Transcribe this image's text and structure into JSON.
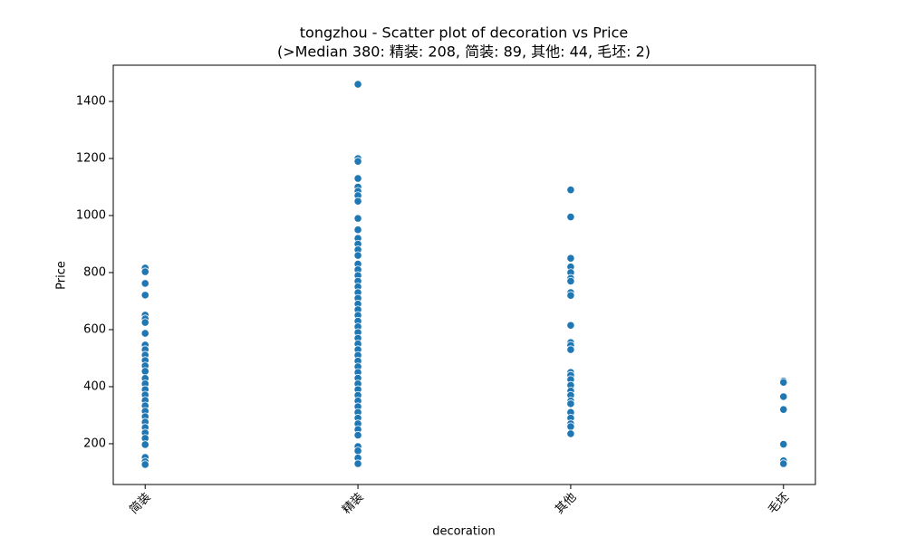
{
  "chart_data": {
    "type": "scatter",
    "title": "tongzhou - Scatter plot of decoration vs Price",
    "subtitle": "(>Median 380: 精装: 208, 简装: 89, 其他: 44, 毛坯: 2)",
    "x_label": "decoration",
    "y_label": "Price",
    "categories": [
      "简装",
      "精装",
      "其他",
      "毛坯"
    ],
    "color": "#1f77b4",
    "values": [
      [
        816,
        803,
        762,
        721,
        651,
        638,
        625,
        587,
        546,
        530,
        511,
        492,
        473,
        454,
        429,
        410,
        390,
        371,
        352,
        333,
        314,
        295,
        276,
        257,
        238,
        219,
        197,
        152,
        137,
        127
      ],
      [
        1460,
        1200,
        1190,
        1130,
        1100,
        1085,
        1070,
        1050,
        990,
        950,
        920,
        900,
        880,
        860,
        830,
        810,
        790,
        770,
        750,
        730,
        710,
        690,
        670,
        650,
        630,
        610,
        590,
        570,
        550,
        530,
        510,
        490,
        470,
        450,
        430,
        410,
        390,
        370,
        350,
        330,
        310,
        290,
        270,
        250,
        230,
        190,
        175,
        150,
        130
      ],
      [
        1090,
        995,
        850,
        820,
        800,
        780,
        770,
        730,
        720,
        615,
        555,
        545,
        530,
        450,
        440,
        425,
        405,
        385,
        370,
        350,
        340,
        310,
        290,
        270,
        260,
        235
      ],
      [
        420,
        415,
        365,
        320,
        198,
        140,
        130
      ]
    ],
    "xlim": [
      -0.15,
      3.15
    ],
    "ylim": [
      57,
      1527
    ],
    "yticks": [
      200,
      400,
      600,
      800,
      1000,
      1200,
      1400
    ]
  }
}
